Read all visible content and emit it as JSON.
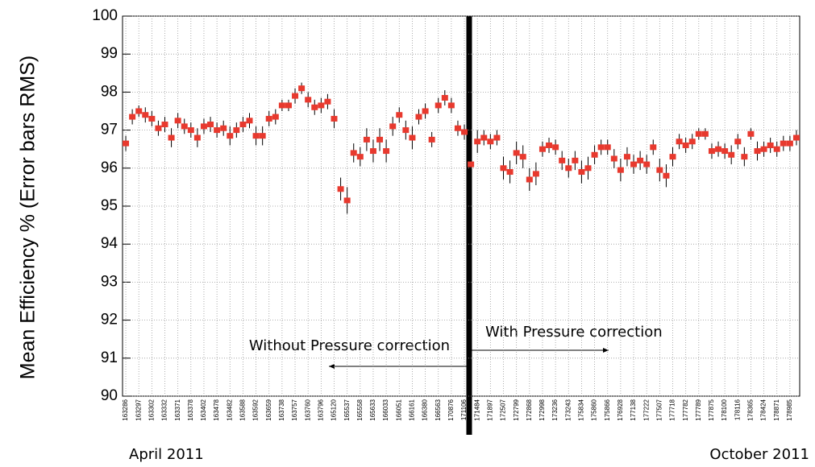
{
  "chart_data": {
    "type": "errorbar",
    "y_label": "Mean Efficiency % (Error bars RMS)",
    "annotations": [
      "Without Pressure correction",
      "With Pressure correction"
    ],
    "date_labels": [
      "April 2011",
      "October 2011"
    ],
    "color": "#e8392e",
    "grid": true,
    "ylim": [
      90,
      100
    ],
    "yticks": [
      90,
      91,
      92,
      93,
      94,
      95,
      96,
      97,
      98,
      99,
      100
    ],
    "categories": [
      "163286",
      null,
      "163297",
      null,
      "163302",
      null,
      "163332",
      null,
      "163371",
      null,
      "163378",
      null,
      "163402",
      null,
      "163478",
      null,
      "163482",
      null,
      "163588",
      null,
      "163592",
      null,
      "163659",
      null,
      "163738",
      null,
      "163757",
      null,
      "163760",
      null,
      "163796",
      null,
      "165120",
      null,
      "165537",
      null,
      "165558",
      null,
      "165633",
      null,
      "166033",
      null,
      "166051",
      null,
      "166161",
      null,
      "166380",
      null,
      "166563",
      null,
      "170876",
      null,
      "171106",
      null,
      "171484",
      null,
      "171897",
      null,
      "172507",
      null,
      "172799",
      null,
      "172868",
      null,
      "172998",
      null,
      "173236",
      null,
      "173243",
      null,
      "175834",
      null,
      "175860",
      null,
      "175866",
      null,
      "176928",
      null,
      "177138",
      null,
      "177222",
      null,
      "177507",
      null,
      "177718",
      null,
      "177782",
      null,
      "177789",
      null,
      "177875",
      null,
      "178100",
      null,
      "178116",
      null,
      "178365",
      null,
      "178424",
      null,
      "178871",
      null,
      "178985",
      null
    ],
    "values": [
      96.65,
      97.35,
      97.5,
      97.4,
      97.3,
      97.05,
      97.15,
      96.8,
      97.25,
      97.1,
      97.0,
      96.8,
      97.1,
      97.15,
      97.0,
      97.05,
      96.85,
      97.0,
      97.15,
      97.25,
      96.85,
      96.85,
      97.3,
      97.35,
      97.65,
      97.65,
      97.9,
      98.1,
      97.8,
      97.6,
      97.65,
      97.75,
      97.3,
      95.45,
      95.15,
      96.4,
      96.3,
      96.75,
      96.45,
      96.75,
      96.45,
      97.1,
      97.4,
      97.0,
      96.8,
      97.35,
      97.5,
      96.75,
      97.65,
      97.85,
      97.65,
      97.05,
      96.95,
      96.1,
      96.7,
      96.8,
      96.7,
      96.8,
      96.0,
      95.9,
      96.4,
      96.3,
      95.7,
      95.85,
      96.5,
      96.6,
      96.55,
      96.2,
      96.0,
      96.2,
      95.9,
      96.0,
      96.35,
      96.55,
      96.55,
      96.25,
      95.95,
      96.3,
      96.1,
      96.2,
      96.1,
      96.55,
      95.95,
      95.8,
      96.3,
      96.7,
      96.6,
      96.7,
      96.9,
      96.9,
      96.45,
      96.5,
      96.45,
      96.35,
      96.7,
      96.3,
      96.9,
      96.45,
      96.5,
      96.6,
      96.5,
      96.65,
      96.65,
      96.8
    ],
    "errors": [
      0.2,
      0.2,
      0.15,
      0.2,
      0.2,
      0.2,
      0.2,
      0.25,
      0.2,
      0.2,
      0.2,
      0.25,
      0.2,
      0.2,
      0.2,
      0.2,
      0.25,
      0.2,
      0.2,
      0.2,
      0.25,
      0.25,
      0.2,
      0.2,
      0.15,
      0.15,
      0.2,
      0.15,
      0.2,
      0.2,
      0.2,
      0.2,
      0.25,
      0.3,
      0.35,
      0.25,
      0.25,
      0.3,
      0.3,
      0.3,
      0.3,
      0.25,
      0.2,
      0.25,
      0.3,
      0.2,
      0.2,
      0.2,
      0.2,
      0.2,
      0.2,
      0.2,
      0.2,
      0.3,
      0.3,
      0.2,
      0.2,
      0.2,
      0.3,
      0.3,
      0.3,
      0.3,
      0.3,
      0.3,
      0.2,
      0.2,
      0.2,
      0.25,
      0.25,
      0.25,
      0.3,
      0.3,
      0.25,
      0.2,
      0.2,
      0.25,
      0.3,
      0.25,
      0.25,
      0.25,
      0.25,
      0.2,
      0.3,
      0.3,
      0.25,
      0.2,
      0.2,
      0.2,
      0.15,
      0.15,
      0.2,
      0.2,
      0.2,
      0.25,
      0.2,
      0.25,
      0.15,
      0.25,
      0.2,
      0.2,
      0.2,
      0.2,
      0.2,
      0.2
    ]
  }
}
